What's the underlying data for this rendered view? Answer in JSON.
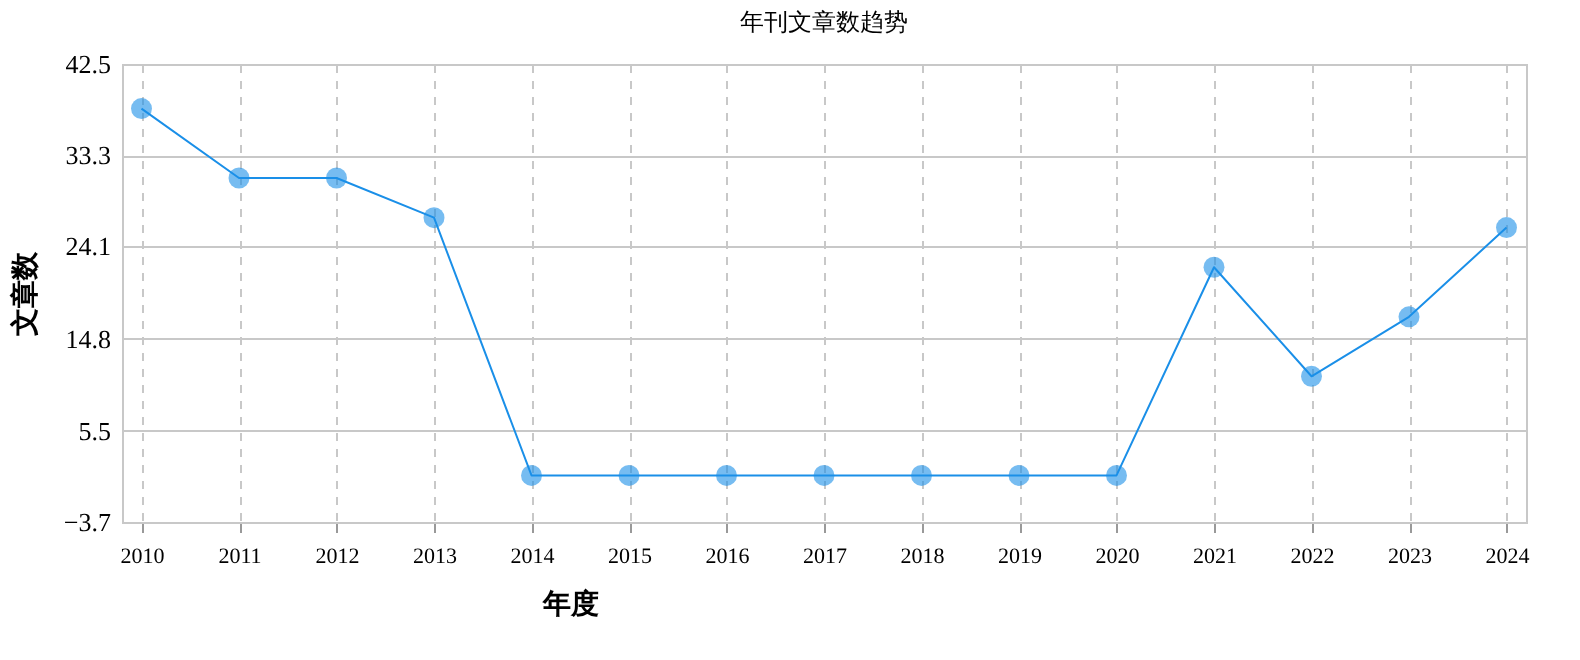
{
  "chart_data": {
    "type": "line",
    "title": "年刊文章数趋势",
    "xlabel": "年度",
    "ylabel": "文章数",
    "categories": [
      "2010",
      "2011",
      "2012",
      "2013",
      "2014",
      "2015",
      "2016",
      "2017",
      "2018",
      "2019",
      "2020",
      "2021",
      "2022",
      "2023",
      "2024"
    ],
    "series": [
      {
        "color": "#1a8fe8",
        "values": [
          38,
          31,
          31,
          27,
          1,
          1,
          1,
          1,
          1,
          1,
          1,
          22,
          11,
          17,
          26
        ]
      }
    ],
    "ylim": [
      -3.7,
      42.5
    ],
    "yticks": [
      -3.7,
      5.5,
      14.8,
      24.1,
      33.3,
      42.5
    ],
    "grid": true,
    "marker": "circle",
    "line_style": "solid"
  }
}
